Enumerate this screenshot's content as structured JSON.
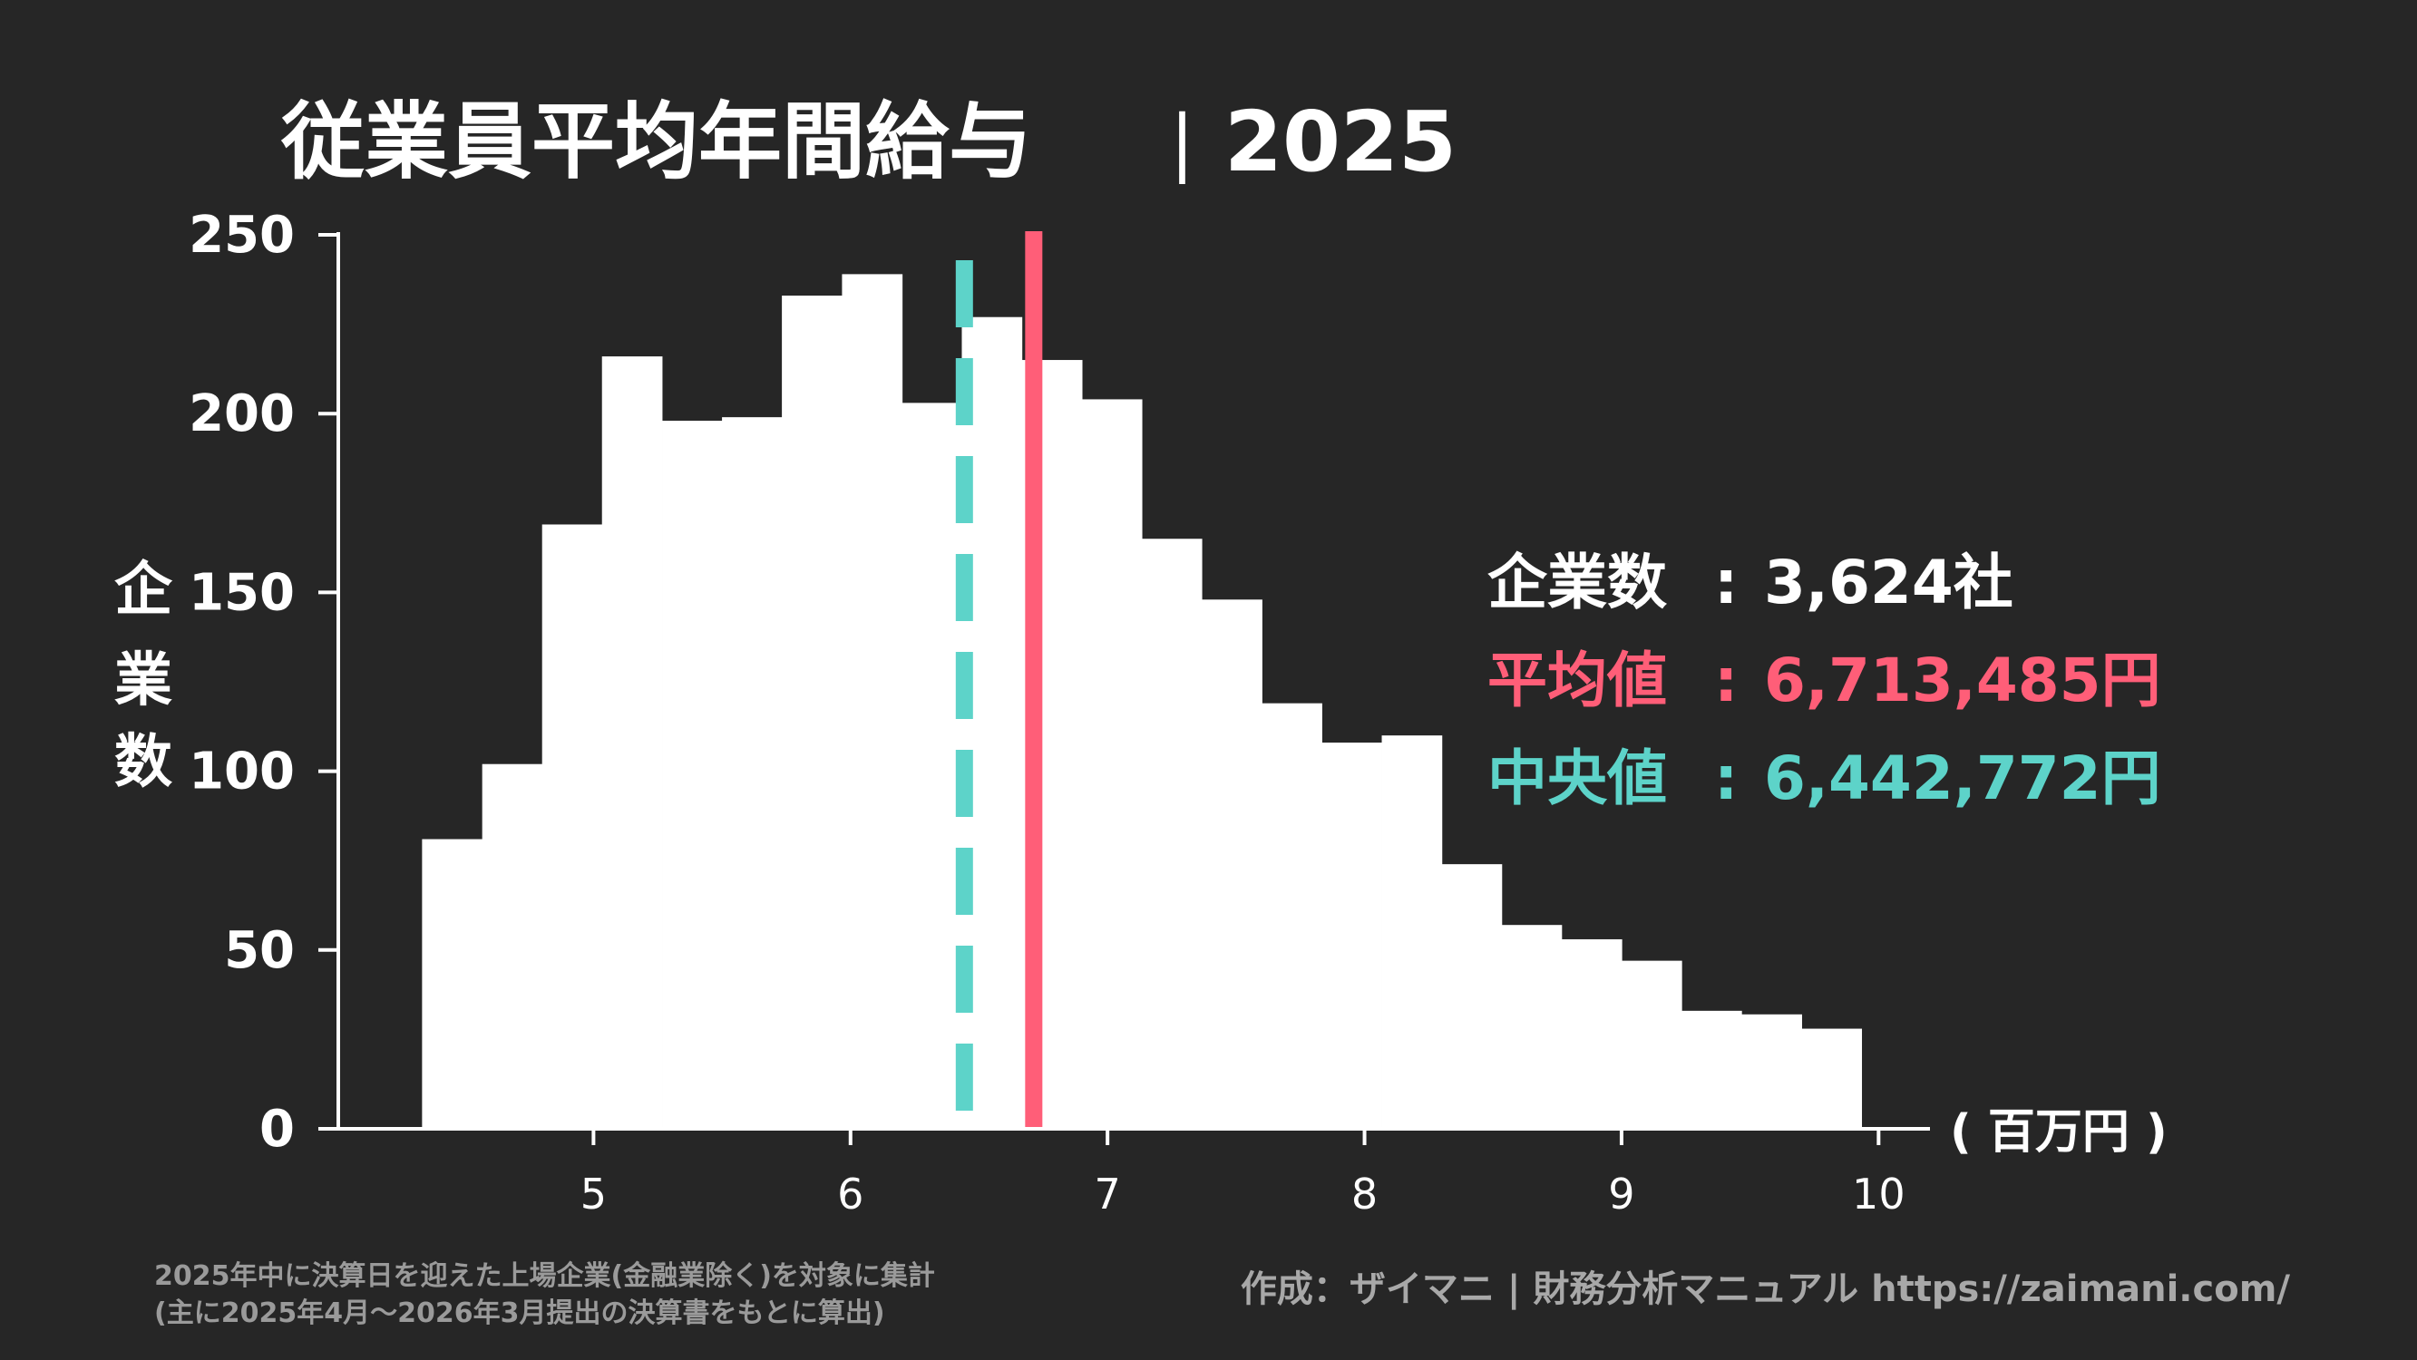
{
  "chart_data": {
    "type": "bar",
    "title_main": "従業員平均年間給与",
    "title_separator": "|",
    "title_year": "2025",
    "ylabel_chars": [
      "企",
      "業",
      "数"
    ],
    "xunit_label": "( 百万円 )",
    "xlim": [
      4.0,
      10.2
    ],
    "ylim": [
      0,
      250
    ],
    "x_ticks": [
      5,
      6,
      7,
      8,
      9,
      10
    ],
    "y_ticks": [
      0,
      50,
      100,
      150,
      200,
      250
    ],
    "bin_width": 0.2333,
    "bins": [
      {
        "x0": 4.333,
        "value": 81
      },
      {
        "x0": 4.567,
        "value": 102
      },
      {
        "x0": 4.8,
        "value": 169
      },
      {
        "x0": 5.033,
        "value": 216
      },
      {
        "x0": 5.267,
        "value": 198
      },
      {
        "x0": 5.5,
        "value": 199
      },
      {
        "x0": 5.733,
        "value": 233
      },
      {
        "x0": 5.967,
        "value": 239
      },
      {
        "x0": 6.2,
        "value": 203
      },
      {
        "x0": 6.433,
        "value": 227
      },
      {
        "x0": 6.667,
        "value": 215
      },
      {
        "x0": 6.9,
        "value": 204
      },
      {
        "x0": 7.133,
        "value": 165
      },
      {
        "x0": 7.367,
        "value": 148
      },
      {
        "x0": 7.6,
        "value": 119
      },
      {
        "x0": 7.833,
        "value": 108
      },
      {
        "x0": 8.067,
        "value": 110
      },
      {
        "x0": 8.3,
        "value": 74
      },
      {
        "x0": 8.533,
        "value": 57
      },
      {
        "x0": 8.767,
        "value": 53
      },
      {
        "x0": 9.0,
        "value": 47
      },
      {
        "x0": 9.233,
        "value": 33
      },
      {
        "x0": 9.467,
        "value": 32
      },
      {
        "x0": 9.7,
        "value": 28
      }
    ],
    "mean_value": 6.713,
    "median_value": 6.443,
    "stats": {
      "count_label": "企業数",
      "count_sep": ":",
      "count_value": "3,624社",
      "mean_label": "平均値",
      "mean_sep": ":",
      "mean_text": "6,713,485円",
      "median_label": "中央値",
      "median_sep": ":",
      "median_text": "6,442,772円"
    },
    "note_line1": "2025年中に決算日を迎えた上場企業(金融業除く)を対象に集計",
    "note_line2": "(主に2025年4月〜2026年3月提出の決算書をもとに算出)",
    "credit": "作成：ザイマニ | 財務分析マニュアル https://zaimani.com/"
  },
  "colors": {
    "background": "#262626",
    "bars": "#ffffff",
    "axis": "#ffffff",
    "mean": "#ff5e78",
    "median": "#5dd3c9",
    "note": "#9a9a9a",
    "credit": "#a8a8a8"
  }
}
